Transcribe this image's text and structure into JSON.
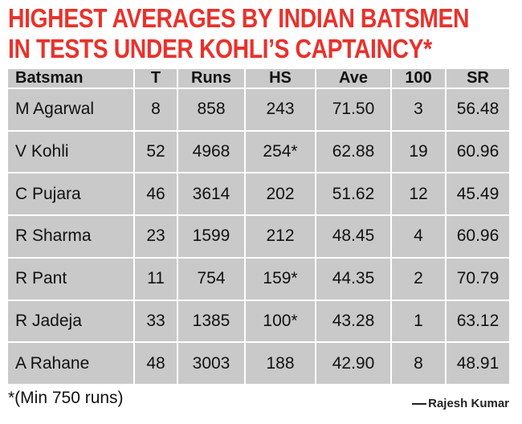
{
  "title": {
    "line1": "HIGHEST AVERAGES BY INDIAN BATSMEN",
    "line2": "IN TESTS UNDER KOHLI’S CAPTAINCY*"
  },
  "table": {
    "headers": [
      "Batsman",
      "T",
      "Runs",
      "HS",
      "Ave",
      "100",
      "SR"
    ],
    "rows": [
      [
        "M Agarwal",
        "8",
        "858",
        "243",
        "71.50",
        "3",
        "56.48"
      ],
      [
        "V Kohli",
        "52",
        "4968",
        "254*",
        "62.88",
        "19",
        "60.96"
      ],
      [
        "C Pujara",
        "46",
        "3614",
        "202",
        "51.62",
        "12",
        "45.49"
      ],
      [
        "R Sharma",
        "23",
        "1599",
        "212",
        "48.45",
        "4",
        "60.96"
      ],
      [
        "R Pant",
        "11",
        "754",
        "159*",
        "44.35",
        "2",
        "70.79"
      ],
      [
        "R Jadeja",
        "33",
        "1385",
        "100*",
        "43.28",
        "1",
        "63.12"
      ],
      [
        "A Rahane",
        "48",
        "3003",
        "188",
        "42.90",
        "8",
        "48.91"
      ]
    ]
  },
  "footnote": "*(Min 750 runs)",
  "credit": "Rajesh Kumar"
}
